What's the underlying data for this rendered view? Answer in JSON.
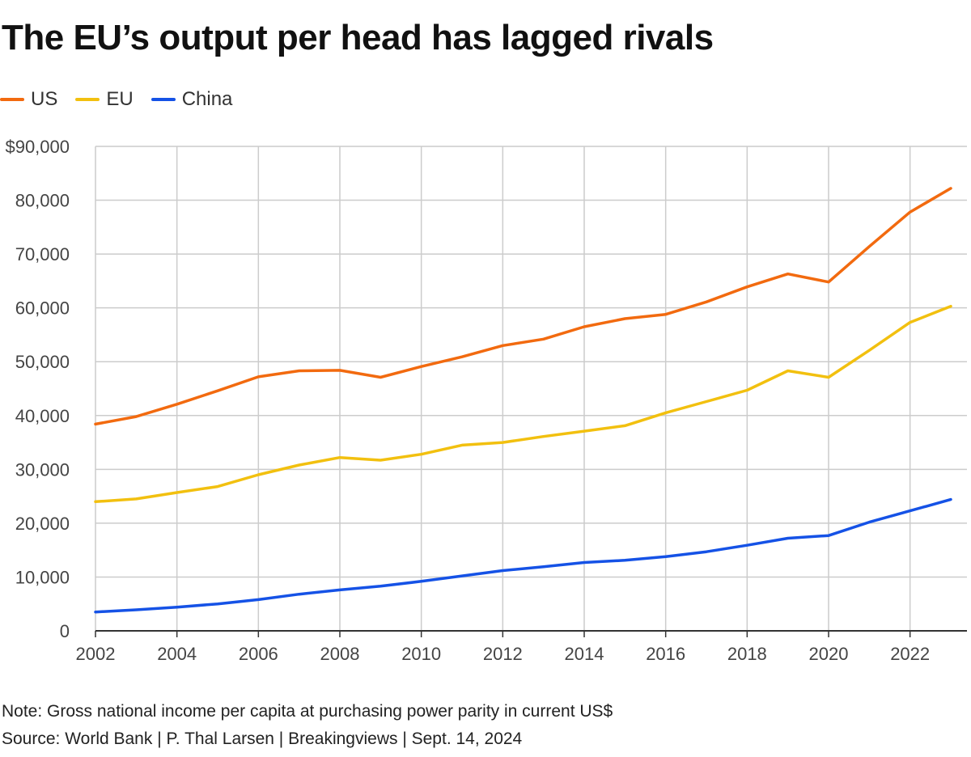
{
  "title": "The EU’s output per head has lagged rivals",
  "note": "Note: Gross national income per capita at purchasing power parity in current US$",
  "source": "Source: World Bank | P. Thal Larsen | Breakingviews | Sept. 14, 2024",
  "chart_data": {
    "type": "line",
    "title": "The EU’s output per head has lagged rivals",
    "xlabel": "",
    "ylabel": "",
    "x": [
      2002,
      2003,
      2004,
      2005,
      2006,
      2007,
      2008,
      2009,
      2010,
      2011,
      2012,
      2013,
      2014,
      2015,
      2016,
      2017,
      2018,
      2019,
      2020,
      2021,
      2022,
      2023
    ],
    "xlim": [
      2002,
      2023
    ],
    "ylim": [
      0,
      90000
    ],
    "x_ticks": [
      2002,
      2004,
      2006,
      2008,
      2010,
      2012,
      2014,
      2016,
      2018,
      2020,
      2022
    ],
    "x_gridlines": [
      2002,
      2004,
      2006,
      2008,
      2010,
      2012,
      2014,
      2016,
      2018,
      2020,
      2022
    ],
    "x_tick_labels": [
      "2002",
      "2004",
      "2006",
      "2008",
      "2010",
      "2012",
      "2014",
      "2016",
      "2018",
      "2020",
      "2022"
    ],
    "y_ticks": [
      0,
      10000,
      20000,
      30000,
      40000,
      50000,
      60000,
      70000,
      80000,
      90000
    ],
    "y_tick_labels": [
      "0",
      "10,000",
      "20,000",
      "30,000",
      "40,000",
      "50,000",
      "60,000",
      "70,000",
      "80,000",
      "$90,000"
    ],
    "grid": true,
    "legend": "top-left",
    "series": [
      {
        "name": "US",
        "color": "#f26a0f",
        "values": [
          38400,
          39800,
          42100,
          44600,
          47200,
          48300,
          48400,
          47100,
          49100,
          50900,
          53000,
          54200,
          56500,
          58000,
          58800,
          61100,
          63900,
          66300,
          64800,
          71400,
          77800,
          82200
        ]
      },
      {
        "name": "EU",
        "color": "#f2c00f",
        "values": [
          24000,
          24500,
          25700,
          26800,
          29000,
          30800,
          32200,
          31700,
          32800,
          34500,
          35000,
          36100,
          37100,
          38100,
          40500,
          42600,
          44700,
          48300,
          47100,
          52100,
          57300,
          60300
        ]
      },
      {
        "name": "China",
        "color": "#1552e6",
        "values": [
          3500,
          3900,
          4400,
          5000,
          5800,
          6800,
          7600,
          8300,
          9200,
          10200,
          11200,
          11900,
          12700,
          13100,
          13800,
          14700,
          15900,
          17200,
          17700,
          20200,
          22300,
          24400
        ]
      }
    ]
  }
}
